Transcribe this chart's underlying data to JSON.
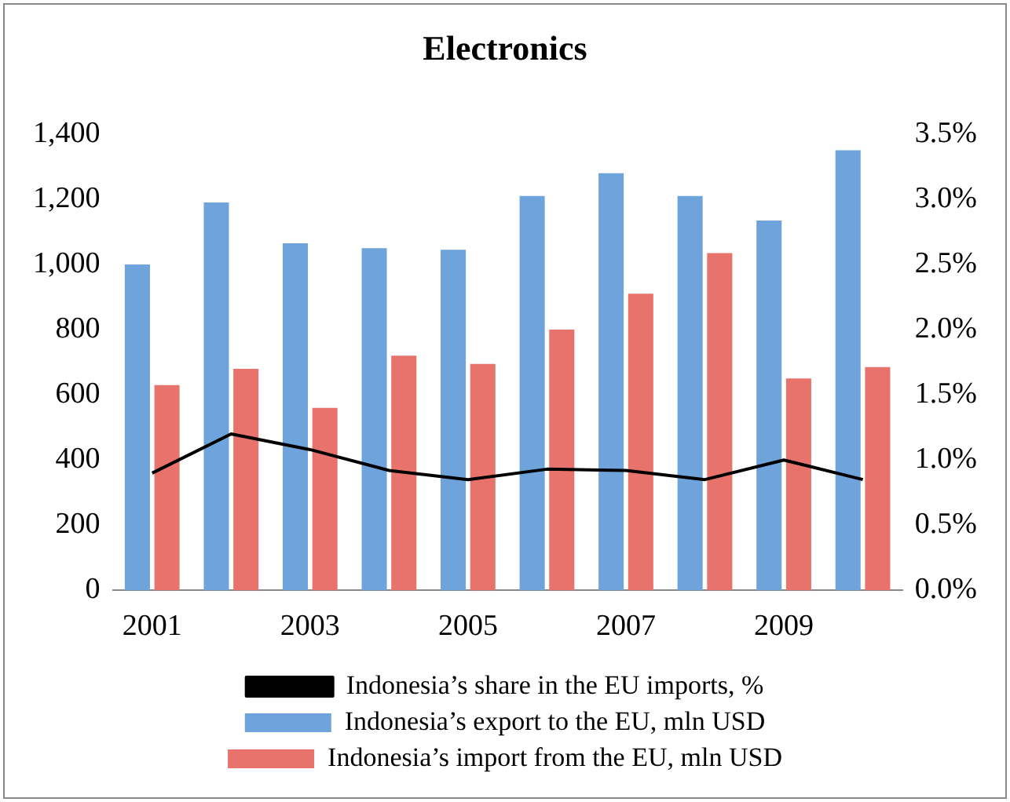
{
  "chart_data": {
    "type": "bar",
    "title": "Electronics",
    "categories": [
      "2001",
      null,
      "2003",
      null,
      "2005",
      null,
      "2007",
      null,
      "2009",
      null
    ],
    "series": [
      {
        "name": "Indonesia’s export to the EU, mln USD",
        "color": "#6fa3dc",
        "values": [
          1000,
          1190,
          1065,
          1050,
          1045,
          1210,
          1280,
          1210,
          1135,
          1350
        ]
      },
      {
        "name": "Indonesia’s import from the EU, mln USD",
        "color": "#e8736c",
        "values": [
          630,
          680,
          560,
          720,
          695,
          800,
          910,
          1035,
          650,
          685
        ]
      },
      {
        "name": "Indonesia’s share in the EU imports, %",
        "type": "line",
        "axis": "y2",
        "color": "#000000",
        "values": [
          0.9,
          1.2,
          1.08,
          0.92,
          0.85,
          0.93,
          0.92,
          0.85,
          1.0,
          0.85
        ]
      }
    ],
    "ylim": [
      0,
      1400
    ],
    "yticks": [
      0,
      200,
      400,
      600,
      800,
      {
        "value": 1000,
        "label": "1,000"
      },
      {
        "value": 1200,
        "label": "1,200"
      },
      {
        "value": 1400,
        "label": "1,400"
      }
    ],
    "y2lim": [
      0,
      3.5
    ],
    "y2ticks": [
      {
        "value": 0,
        "label": "0.0%"
      },
      {
        "value": 0.5,
        "label": "0.5%"
      },
      {
        "value": 1,
        "label": "1.0%"
      },
      {
        "value": 1.5,
        "label": "1.5%"
      },
      {
        "value": 2,
        "label": "2.0%"
      },
      {
        "value": 2.5,
        "label": "2.5%"
      },
      {
        "value": 3,
        "label": "3.0%"
      },
      {
        "value": 3.5,
        "label": "3.5%"
      }
    ],
    "grid": false,
    "legend": "bottom",
    "marker": "none",
    "line_style": "solid"
  }
}
